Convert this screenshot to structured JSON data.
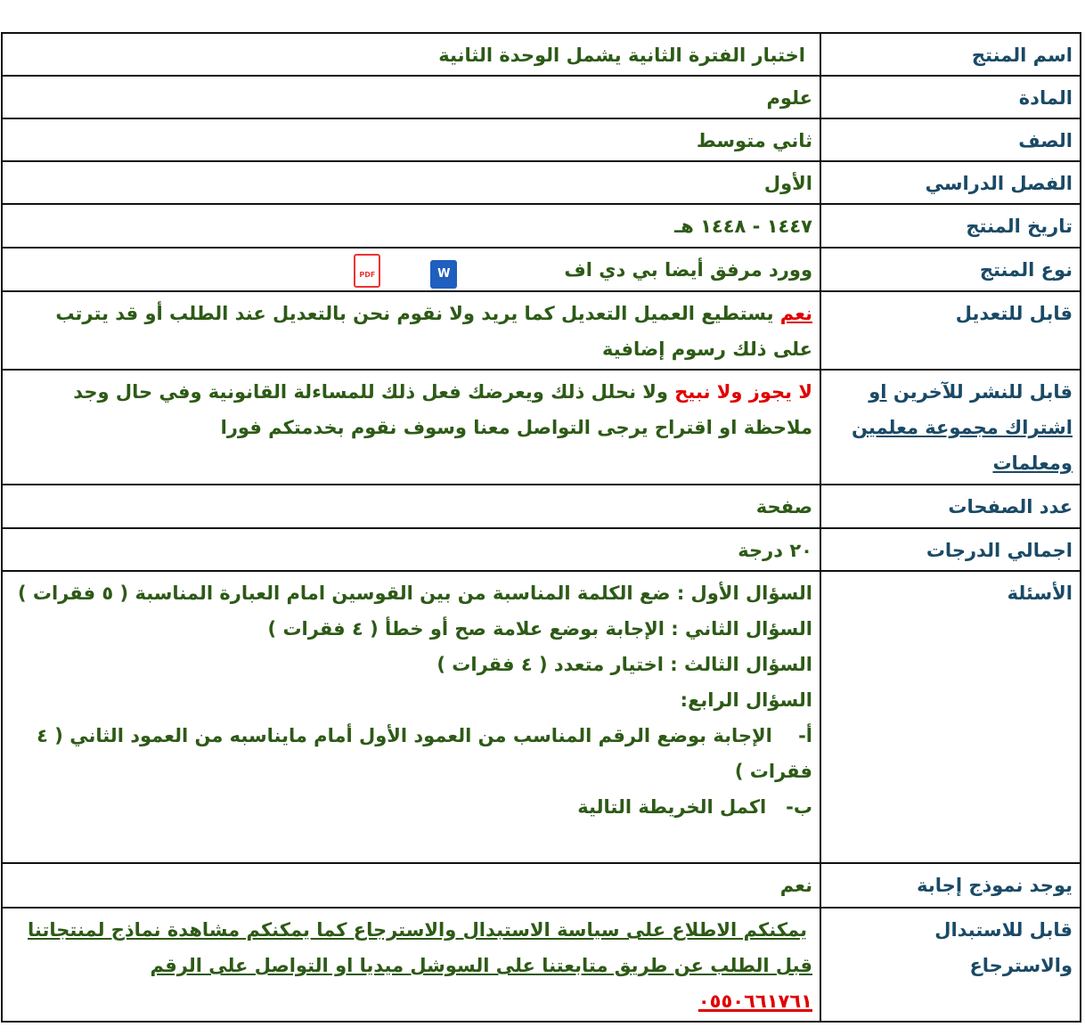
{
  "rows": [
    {
      "label": "اسم المنتج",
      "value": "اختبار الفترة الثانية يشمل الوحدة الثانية"
    },
    {
      "label": "المادة",
      "value": "علوم"
    },
    {
      "label": "الصف",
      "value": "ثاني متوسط"
    },
    {
      "label": "الفصل الدراسي",
      "value": "الأول"
    },
    {
      "label": "تاريخ المنتج",
      "value": "١٤٤٧ - ١٤٤٨ هـ"
    },
    {
      "label": "نوع المنتج",
      "value": "وورد مرفق أيضا بي دي اف",
      "icons": [
        "word-icon",
        "pdf-icon"
      ],
      "word_letter": "W",
      "pdf_text": "PDF"
    },
    {
      "label": "قابل للتعديل",
      "highlight": "نعم",
      "value": "يستطيع العميل التعديل كما يريد  ولا نقوم نحن  بالتعديل عند الطلب أو قد يترتب على ذلك رسوم إضافية"
    },
    {
      "label": "قابل للنشر للآخرين",
      "label_link": "او",
      "label_link2": "اشتراك مجموعة معلمين ومعلمات",
      "highlight": "لا يجوز ولا نبيح",
      "value": "ولا نحلل ذلك ويعرضك فعل ذلك للمساءلة القانونية وفي حال وجد ملاحظة او اقتراح يرجى التواصل معنا وسوف نقوم بخدمتكم فورا"
    },
    {
      "label": "عدد الصفحات",
      "value": "صفحة"
    },
    {
      "label": "اجمالي الدرجات",
      "value": "٢٠ درجة"
    },
    {
      "label": "الأسئلة",
      "questions": [
        "السؤال الأول : ضع الكلمة المناسبة من بين القوسين امام العبارة المناسبة ( ٥ فقرات )",
        "السؤال الثاني : الإجابة بوضع علامة صح أو خطأ ( ٤ فقرات )",
        "السؤال الثالث : اختيار متعدد ( ٤ فقرات )",
        "السؤال الرابع:",
        "أ-    الإجابة بوضع الرقم المناسب من العمود الأول أمام مايناسبه من العمود الثاني ( ٤ فقرات )",
        "ب-   اكمل الخريطة التالية"
      ]
    },
    {
      "label": "يوجد نموذج إجابة",
      "value": "نعم"
    },
    {
      "label": "قابل للاستبدال والاسترجاع",
      "value": "يمكنكم الاطلاع على سياسة الاستبدال والاسترجاع  كما يمكنكم مشاهدة نماذج لمنتجاتنا قبل الطلب عن طريق متابعتنا على السوشل ميديا او التواصل على الرقم",
      "phone": "٠٥٥٠٦٦١٧٦١"
    }
  ],
  "colors": {
    "label": "#1a4a66",
    "value": "#2d5a16",
    "highlight": "#e00000"
  }
}
